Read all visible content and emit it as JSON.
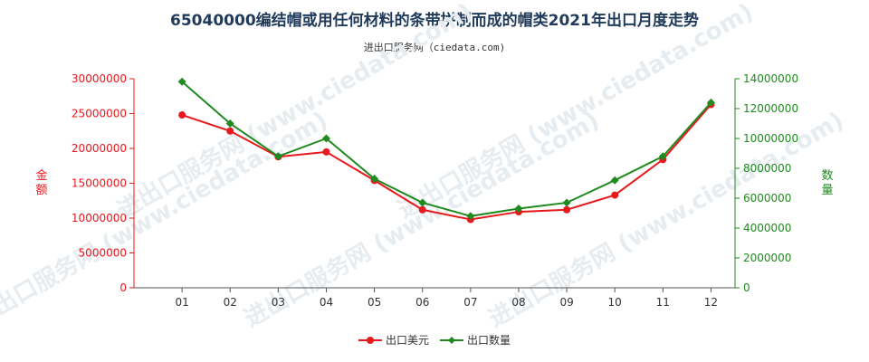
{
  "chart_data": {
    "type": "line",
    "title": "65040000编结帽或用任何材料的条带拼制而成的帽类2021年出口月度走势",
    "subtitle": "进出口服务网（ciedata.com)",
    "watermark": "进出口服务网 (www.ciedata.com)",
    "categories": [
      "01",
      "02",
      "03",
      "04",
      "05",
      "06",
      "07",
      "08",
      "09",
      "10",
      "11",
      "12"
    ],
    "y_left": {
      "label": "金额",
      "ylim": [
        0,
        30000000
      ],
      "ticks": [
        0,
        5000000,
        10000000,
        15000000,
        20000000,
        25000000,
        30000000
      ],
      "tick_labels": [
        "0",
        "5000000",
        "10000000",
        "15000000",
        "20000000",
        "25000000",
        "30000000"
      ]
    },
    "y_right": {
      "label": "数量",
      "ylim": [
        0,
        14000000
      ],
      "ticks": [
        0,
        2000000,
        4000000,
        6000000,
        8000000,
        10000000,
        12000000,
        14000000
      ],
      "tick_labels": [
        "0",
        "2000000",
        "4000000",
        "6000000",
        "8000000",
        "10000000",
        "12000000",
        "14000000"
      ]
    },
    "series": [
      {
        "name": "出口美元",
        "axis": "left",
        "color": "#e8191d",
        "values": [
          24800000,
          22500000,
          18800000,
          19500000,
          15400000,
          11200000,
          9800000,
          10900000,
          11200000,
          13300000,
          18400000,
          26300000
        ]
      },
      {
        "name": "出口数量",
        "axis": "right",
        "color": "#1f8a1f",
        "values": [
          13800000,
          11000000,
          8800000,
          10000000,
          7300000,
          5700000,
          4800000,
          5300000,
          5700000,
          7200000,
          8800000,
          12400000
        ]
      }
    ],
    "legend": "bottom-center",
    "grid": false,
    "colors": {
      "left_axis": "#e8191d",
      "right_axis": "#1f8a1f",
      "title": "#1f3a5a"
    }
  }
}
